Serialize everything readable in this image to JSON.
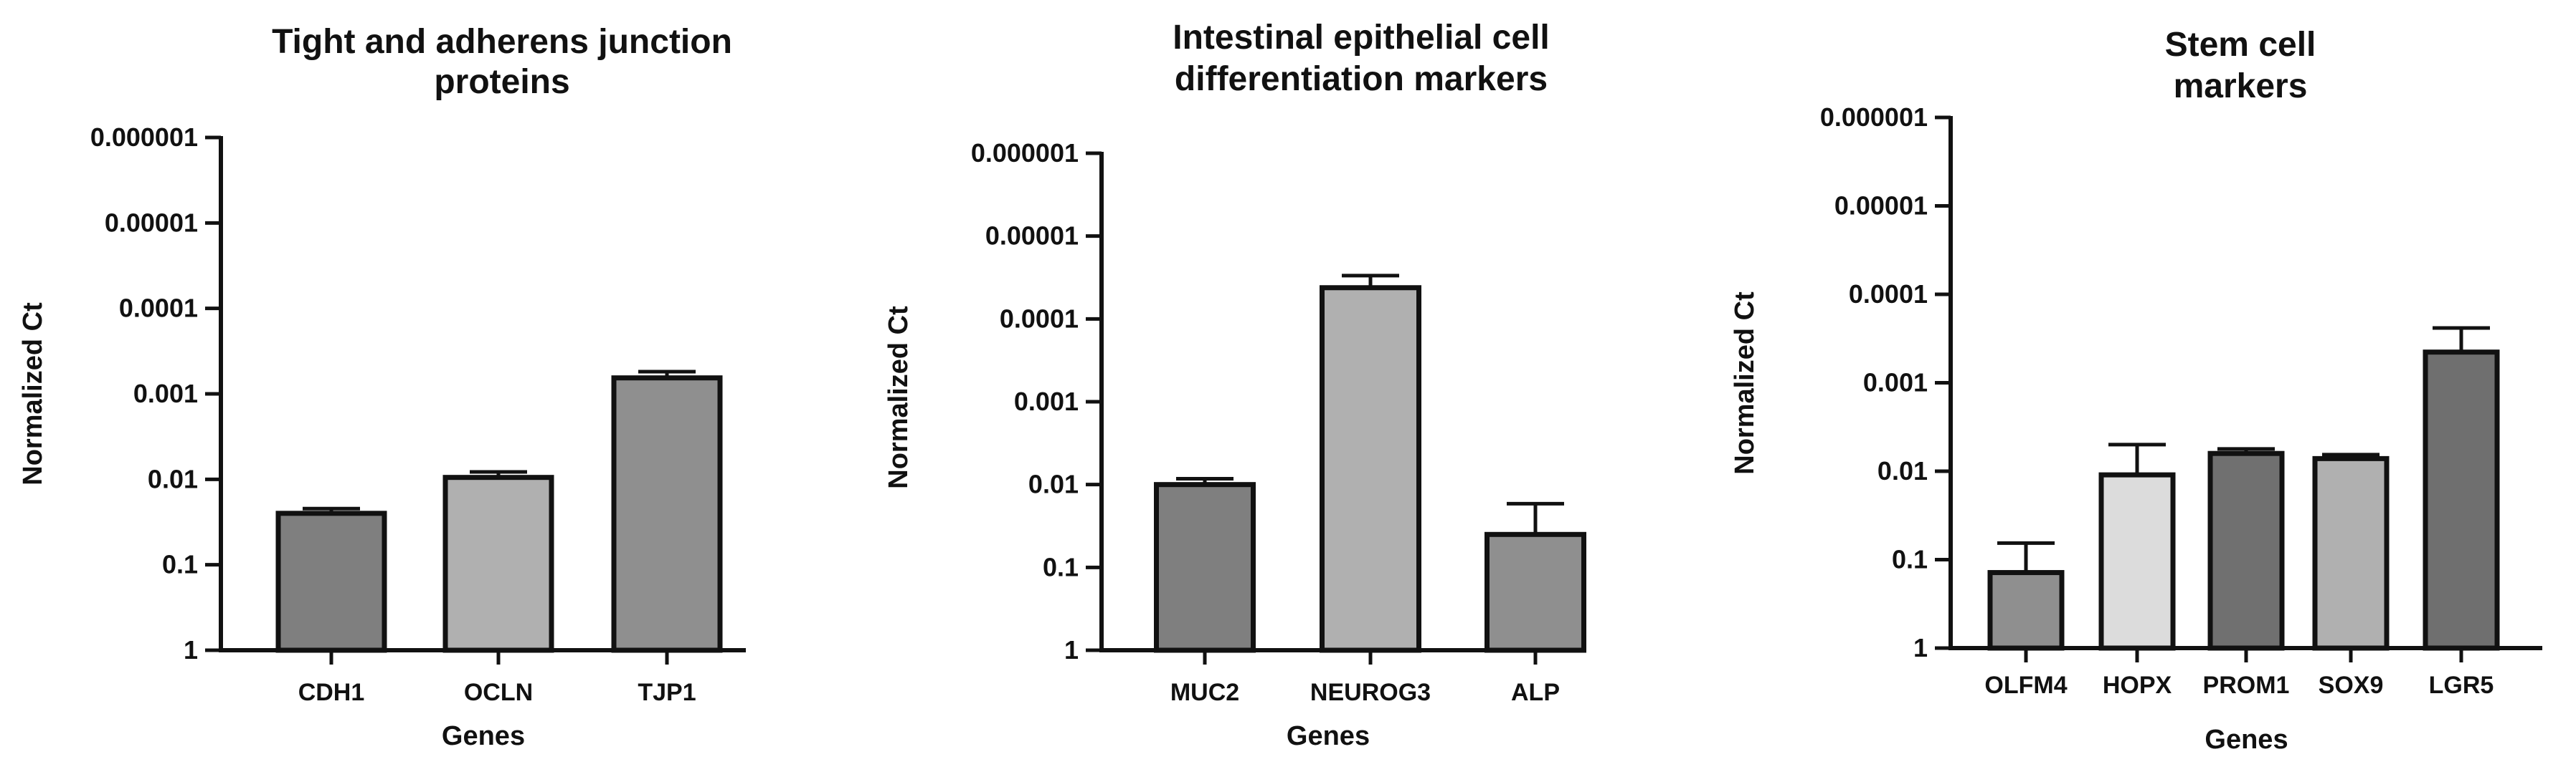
{
  "chart_data": [
    {
      "type": "bar",
      "title": [
        "Tight and adherens junction",
        "proteins"
      ],
      "xlabel": "Genes",
      "ylabel": "Normalized Ct",
      "y_scale": "log-reversed",
      "y_ticks": [
        "0.000001",
        "0.00001",
        "0.0001",
        "0.001",
        "0.01",
        "0.1",
        "1"
      ],
      "categories": [
        "CDH1",
        "OCLN",
        "TJP1"
      ],
      "values": [
        0.025,
        0.0095,
        0.00065
      ],
      "error_upper": [
        0.022,
        0.0082,
        0.00055
      ],
      "colors": [
        "#7f7f7f",
        "#b0b0b0",
        "#8f8f8f"
      ]
    },
    {
      "type": "bar",
      "title": [
        "Intestinal epithelial cell",
        "differentiation markers"
      ],
      "xlabel": "Genes",
      "ylabel": "Normalized Ct",
      "y_scale": "log-reversed",
      "y_ticks": [
        "0.000001",
        "0.00001",
        "0.0001",
        "0.001",
        "0.01",
        "0.1",
        "1"
      ],
      "categories": [
        "MUC2",
        "NEUROG3",
        "ALP"
      ],
      "values": [
        0.01,
        4.2e-05,
        0.04
      ],
      "error_upper": [
        0.0085,
        3e-05,
        0.017
      ],
      "colors": [
        "#7f7f7f",
        "#b0b0b0",
        "#8f8f8f"
      ]
    },
    {
      "type": "bar",
      "title": [
        "Stem cell",
        "markers"
      ],
      "xlabel": "Genes",
      "ylabel": "Normalized Ct",
      "y_scale": "log-reversed",
      "y_ticks": [
        "0.000001",
        "0.00001",
        "0.0001",
        "0.001",
        "0.01",
        "0.1",
        "1"
      ],
      "categories": [
        "OLFM4",
        "HOPX",
        "PROM1",
        "SOX9",
        "LGR5"
      ],
      "values": [
        0.14,
        0.011,
        0.0063,
        0.0072,
        0.00045
      ],
      "error_upper": [
        0.065,
        0.005,
        0.0056,
        0.0065,
        0.00024
      ],
      "colors": [
        "#8f8f8f",
        "#dcdcdc",
        "#707070",
        "#b0b0b0",
        "#6f6f6f"
      ]
    }
  ]
}
